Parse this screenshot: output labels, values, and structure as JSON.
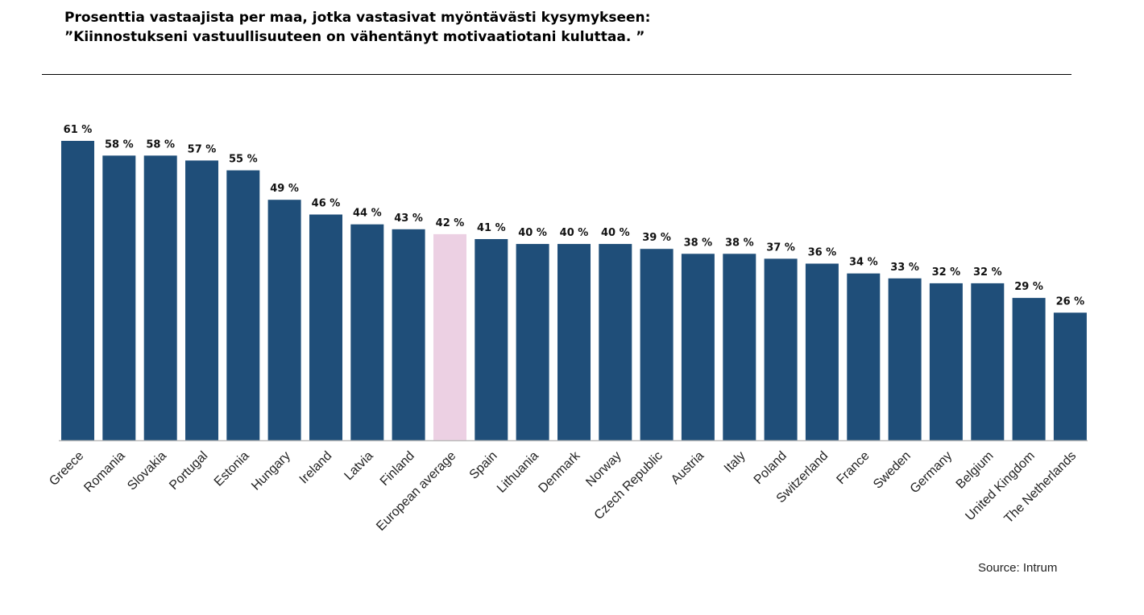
{
  "title": {
    "line1": "Prosenttia vastaajista per maa, jotka vastasivat myöntävästi kysymykseen:",
    "line2": "”Kiinnostukseni vastuullisuuteen on vähentänyt motivaatiotani kuluttaa. ”"
  },
  "source": "Source: Intrum",
  "colors": {
    "bar": "#1f4e79",
    "highlight": "#ecd0e3",
    "axis": "#bbbbbb"
  },
  "chart_data": {
    "type": "bar",
    "categories": [
      "Greece",
      "Romania",
      "Slovakia",
      "Portugal",
      "Estonia",
      "Hungary",
      "Ireland",
      "Latvia",
      "Finland",
      "European average",
      "Spain",
      "Lithuania",
      "Denmark",
      "Norway",
      "Czech Republic",
      "Austria",
      "Italy",
      "Poland",
      "Switzerland",
      "France",
      "Sweden",
      "Germany",
      "Belgium",
      "United Kingdom",
      "The Netherlands"
    ],
    "values": [
      61,
      58,
      58,
      57,
      55,
      49,
      46,
      44,
      43,
      42,
      41,
      40,
      40,
      40,
      39,
      38,
      38,
      37,
      36,
      34,
      33,
      32,
      32,
      29,
      26
    ],
    "value_labels": [
      "61 %",
      "58 %",
      "58 %",
      "57 %",
      "55 %",
      "49 %",
      "46 %",
      "44 %",
      "43 %",
      "42 %",
      "41 %",
      "40 %",
      "40 %",
      "40 %",
      "39 %",
      "38 %",
      "38 %",
      "37 %",
      "36 %",
      "34 %",
      "33 %",
      "32 %",
      "32 %",
      "29 %",
      "26 %"
    ],
    "highlight_category": "European average",
    "unit": "%",
    "ylim": [
      0,
      61
    ],
    "grid": false,
    "legend": "none"
  }
}
